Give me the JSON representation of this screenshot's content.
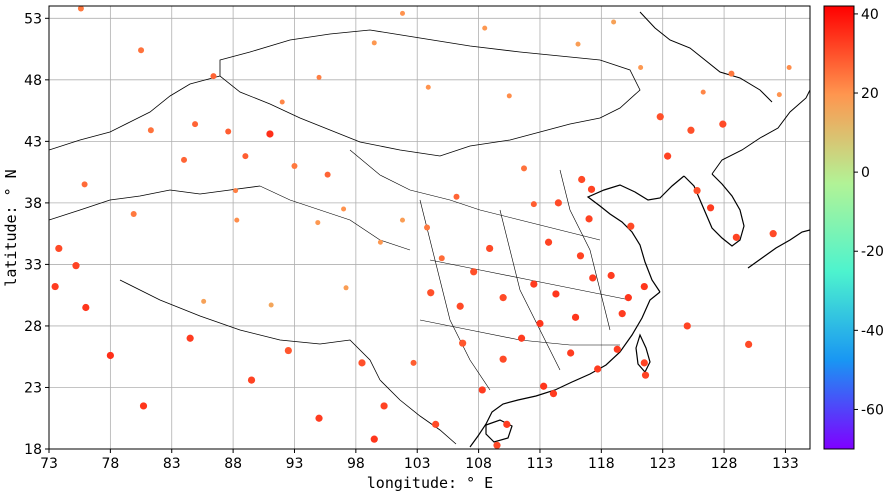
{
  "chart_data": {
    "type": "scatter",
    "xlabel": "longitude: ° E",
    "ylabel": "latitude: ° N",
    "xlim": [
      73,
      135
    ],
    "ylim": [
      18,
      54
    ],
    "x_ticks": [
      73,
      78,
      83,
      88,
      93,
      98,
      103,
      108,
      113,
      118,
      123,
      128,
      133
    ],
    "y_ticks": [
      18,
      23,
      28,
      33,
      38,
      43,
      48,
      53
    ],
    "grid": true,
    "colorbar": {
      "colormap": "rainbow",
      "min": -70,
      "max": 42,
      "ticks": [
        40,
        20,
        0,
        -20,
        -40,
        -60
      ],
      "colors": [
        "#7f00ff",
        "#1996f3",
        "#4df3ce",
        "#b2f396",
        "#ff964f",
        "#ff0000"
      ]
    },
    "series": [
      {
        "points": [
          [
            75.6,
            53.8,
            24
          ],
          [
            80.5,
            50.4,
            25
          ],
          [
            86.4,
            48.3,
            27
          ],
          [
            91.0,
            43.6,
            35
          ],
          [
            95.7,
            40.3,
            27
          ],
          [
            101.8,
            53.4,
            20
          ],
          [
            108.5,
            52.2,
            19
          ],
          [
            116.1,
            50.9,
            18
          ],
          [
            121.2,
            49.0,
            19
          ],
          [
            126.3,
            47.0,
            22
          ],
          [
            122.8,
            45.0,
            30
          ],
          [
            127.9,
            44.4,
            31
          ],
          [
            123.4,
            41.8,
            32
          ],
          [
            116.4,
            39.9,
            31
          ],
          [
            117.2,
            39.1,
            32
          ],
          [
            114.5,
            38.0,
            31
          ],
          [
            112.5,
            37.9,
            28
          ],
          [
            111.7,
            40.8,
            25
          ],
          [
            106.2,
            38.5,
            27
          ],
          [
            103.8,
            36.0,
            24
          ],
          [
            101.8,
            36.6,
            18
          ],
          [
            94.9,
            36.4,
            19
          ],
          [
            87.6,
            43.8,
            28
          ],
          [
            84.9,
            44.4,
            27
          ],
          [
            81.3,
            43.9,
            25
          ],
          [
            75.9,
            39.5,
            26
          ],
          [
            79.9,
            37.1,
            24
          ],
          [
            88.2,
            39.0,
            23
          ],
          [
            91.1,
            29.7,
            16
          ],
          [
            97.2,
            31.1,
            18
          ],
          [
            102.7,
            25.0,
            28
          ],
          [
            106.7,
            26.6,
            29
          ],
          [
            108.3,
            22.8,
            33
          ],
          [
            113.3,
            23.1,
            34
          ],
          [
            114.1,
            22.5,
            33
          ],
          [
            119.3,
            26.1,
            33
          ],
          [
            121.5,
            25.0,
            32
          ],
          [
            120.2,
            30.3,
            34
          ],
          [
            121.5,
            31.2,
            34
          ],
          [
            118.8,
            32.1,
            33
          ],
          [
            117.3,
            31.9,
            33
          ],
          [
            114.3,
            30.6,
            34
          ],
          [
            113.0,
            28.2,
            34
          ],
          [
            115.9,
            28.7,
            34
          ],
          [
            104.1,
            30.7,
            30
          ],
          [
            106.5,
            29.6,
            31
          ],
          [
            108.9,
            34.3,
            31
          ],
          [
            113.7,
            34.8,
            32
          ],
          [
            117.0,
            36.7,
            32
          ],
          [
            120.4,
            36.1,
            31
          ],
          [
            126.9,
            37.6,
            33
          ],
          [
            129.0,
            35.2,
            32
          ],
          [
            125.8,
            39.0,
            30
          ],
          [
            125.3,
            43.9,
            30
          ],
          [
            110.3,
            20.0,
            33
          ],
          [
            109.5,
            18.3,
            31
          ],
          [
            121.6,
            24.0,
            32
          ],
          [
            130.0,
            26.5,
            31
          ],
          [
            125.0,
            28.0,
            32
          ],
          [
            76.0,
            29.5,
            34
          ],
          [
            78.0,
            25.6,
            35
          ],
          [
            84.5,
            27.0,
            33
          ],
          [
            89.5,
            23.6,
            32
          ],
          [
            95.0,
            20.5,
            33
          ],
          [
            99.5,
            18.8,
            34
          ],
          [
            73.5,
            31.2,
            33
          ],
          [
            75.2,
            32.9,
            32
          ],
          [
            73.8,
            34.3,
            31
          ],
          [
            80.7,
            21.5,
            34
          ],
          [
            132.0,
            35.5,
            31
          ],
          [
            128.6,
            48.5,
            24
          ],
          [
            132.5,
            46.8,
            20
          ],
          [
            133.3,
            49.0,
            21
          ],
          [
            119.0,
            52.7,
            17
          ],
          [
            110.5,
            46.7,
            21
          ],
          [
            103.9,
            47.4,
            20
          ],
          [
            99.5,
            51.0,
            19
          ],
          [
            95.0,
            48.2,
            23
          ],
          [
            92.0,
            46.2,
            22
          ],
          [
            88.3,
            36.6,
            21
          ],
          [
            85.6,
            30.0,
            17
          ],
          [
            92.5,
            26.0,
            29
          ],
          [
            98.5,
            25.0,
            30
          ],
          [
            100.3,
            21.5,
            32
          ],
          [
            104.5,
            20.0,
            31
          ],
          [
            110.0,
            25.3,
            31
          ],
          [
            111.5,
            27.0,
            33
          ],
          [
            115.5,
            25.8,
            33
          ],
          [
            117.7,
            24.5,
            33
          ],
          [
            119.7,
            29.0,
            33
          ],
          [
            116.3,
            33.7,
            32
          ],
          [
            112.5,
            31.4,
            33
          ],
          [
            110.0,
            30.3,
            31
          ],
          [
            107.6,
            32.4,
            30
          ],
          [
            105.0,
            33.5,
            26
          ],
          [
            100.0,
            34.8,
            19
          ],
          [
            97.0,
            37.5,
            20
          ],
          [
            93.0,
            41.0,
            24
          ],
          [
            89.0,
            41.8,
            28
          ],
          [
            84.0,
            41.5,
            27
          ]
        ]
      }
    ]
  }
}
